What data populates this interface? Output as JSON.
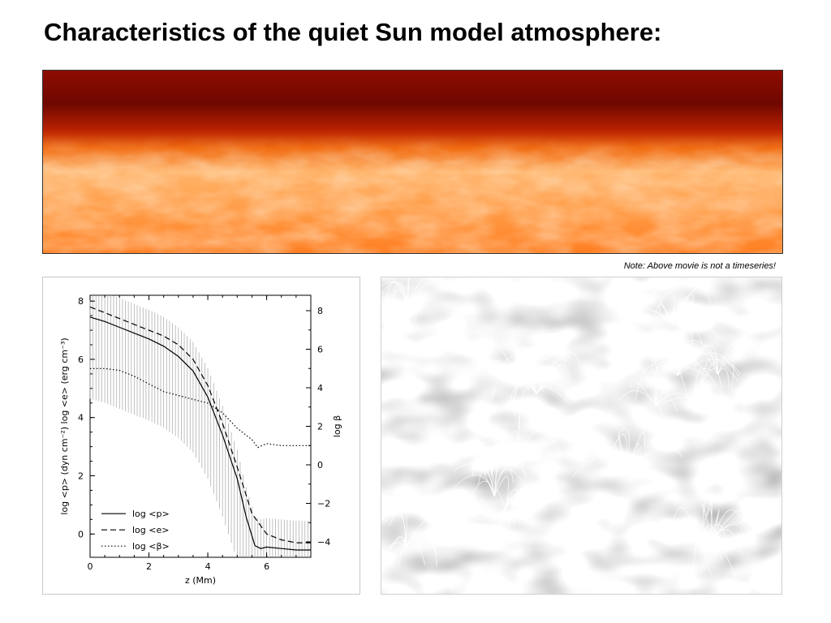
{
  "slide": {
    "title": "Characteristics of the quiet Sun model atmosphere:",
    "note": "Note: Above movie is not a timeseries!"
  },
  "images": {
    "top": "temperature-cross-section-heatmap",
    "right": "magnetic-field-lines-over-granulation"
  },
  "chart_data": {
    "type": "line",
    "xlabel": "z (Mm)",
    "ylabel_left": "log <p> (dyn cm⁻²)   log <e> (erg cm⁻³)",
    "ylabel_right": "log β",
    "xlim": [
      0,
      7.5
    ],
    "ylim_left": [
      -0.8,
      8.2
    ],
    "ylim_right": [
      -4.8,
      8.8
    ],
    "xticks": [
      0,
      2,
      4,
      6
    ],
    "yticks_left": [
      0,
      2,
      4,
      6,
      8
    ],
    "yticks_right": [
      -4,
      -2,
      0,
      2,
      4,
      6,
      8
    ],
    "legend_placement": "bottom-left",
    "grid": false,
    "series": [
      {
        "name": "log <p>",
        "style": "solid",
        "axis": "left",
        "x": [
          0,
          0.5,
          1,
          1.5,
          2,
          2.5,
          3,
          3.5,
          4,
          4.5,
          5,
          5.3,
          5.6,
          5.8,
          6,
          6.5,
          7,
          7.5
        ],
        "y": [
          7.45,
          7.3,
          7.1,
          6.9,
          6.7,
          6.45,
          6.1,
          5.6,
          4.7,
          3.4,
          1.9,
          0.6,
          -0.4,
          -0.5,
          -0.45,
          -0.5,
          -0.55,
          -0.55
        ]
      },
      {
        "name": "log <e>",
        "style": "dashed",
        "axis": "left",
        "x": [
          0,
          0.5,
          1,
          1.5,
          2,
          2.5,
          3,
          3.5,
          4,
          4.5,
          5,
          5.5,
          6,
          6.5,
          7,
          7.5
        ],
        "y": [
          7.8,
          7.6,
          7.4,
          7.2,
          7.0,
          6.8,
          6.5,
          6.0,
          5.1,
          3.8,
          2.3,
          0.7,
          0.0,
          -0.2,
          -0.3,
          -0.3
        ]
      },
      {
        "name": "log <β>",
        "style": "dotted",
        "axis": "right",
        "x": [
          0,
          0.5,
          1,
          1.5,
          2,
          2.5,
          3,
          3.5,
          4,
          4.5,
          5,
          5.5,
          5.7,
          6,
          6.5,
          7,
          7.5
        ],
        "y": [
          5.0,
          5.0,
          4.9,
          4.6,
          4.2,
          3.8,
          3.6,
          3.4,
          3.2,
          2.7,
          1.9,
          1.3,
          0.9,
          1.1,
          1.0,
          1.0,
          1.0
        ]
      }
    ],
    "error_bars": {
      "series": "log <p>",
      "x_start": 0,
      "x_end": 7.4,
      "spacing": 0.1,
      "upper_offset": 1.0,
      "lower_offset": 2.8
    }
  }
}
